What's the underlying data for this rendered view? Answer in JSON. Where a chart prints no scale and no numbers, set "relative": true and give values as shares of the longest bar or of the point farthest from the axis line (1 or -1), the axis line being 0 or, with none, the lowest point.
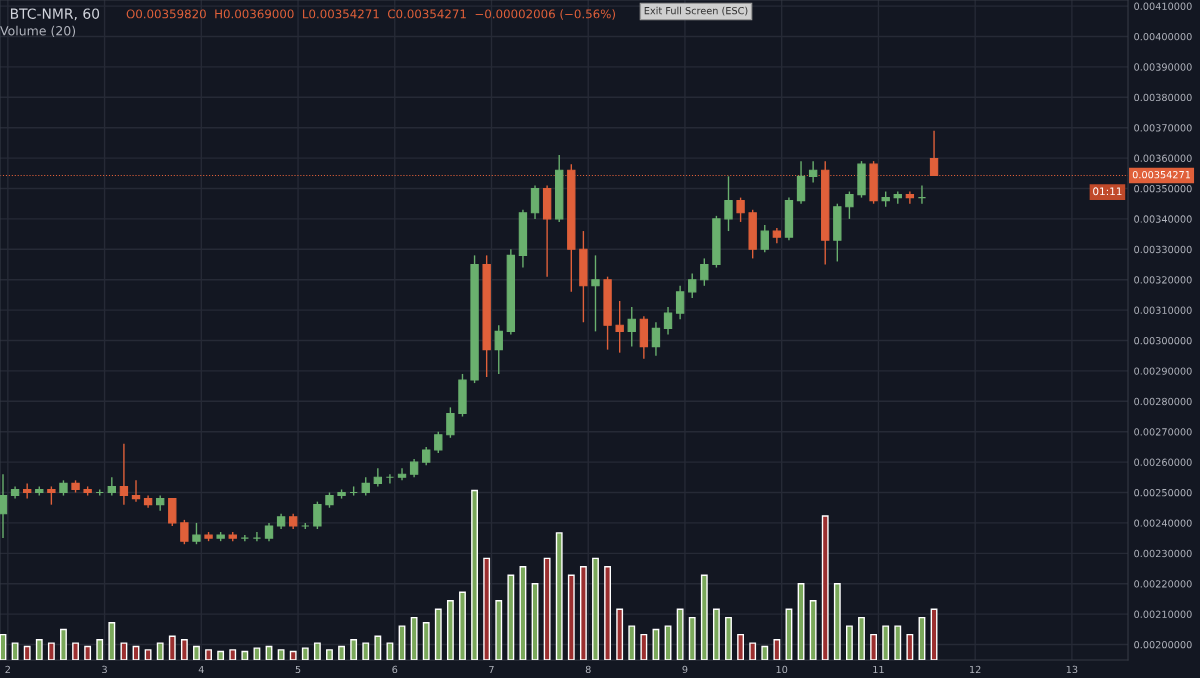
{
  "chart_data": [
    {
      "type": "candlestick",
      "title": "BTC-NMR, 60",
      "subtitle": "O0.00359820  H0.00369000  L0.00354271  C0.00354271  −0.00002006 (−0.56%)",
      "x": [
        1.95,
        2.075,
        2.2,
        2.325,
        2.45,
        2.575,
        2.7,
        2.825,
        2.95,
        3.075,
        3.2,
        3.325,
        3.45,
        3.575,
        3.7,
        3.825,
        3.95,
        4.075,
        4.2,
        4.325,
        4.45,
        4.575,
        4.7,
        4.825,
        4.95,
        5.075,
        5.2,
        5.325,
        5.45,
        5.575,
        5.7,
        5.825,
        5.95,
        6.075,
        6.2,
        6.325,
        6.45,
        6.575,
        6.7,
        6.825,
        6.95,
        7.075,
        7.2,
        7.325,
        7.45,
        7.575,
        7.7,
        7.825,
        7.95,
        8.075,
        8.2,
        8.325,
        8.45,
        8.575,
        8.7,
        8.825,
        8.95,
        9.075,
        9.2,
        9.325,
        9.45,
        9.575,
        9.7,
        9.825,
        9.95,
        10.075,
        10.2,
        10.325,
        10.45,
        10.575,
        10.7,
        10.825,
        10.95,
        11.075,
        11.2,
        11.325,
        11.45,
        11.575
      ],
      "ohlc": [
        [
          0.00243,
          0.00256,
          0.00235,
          0.00249
        ],
        [
          0.00249,
          0.00252,
          0.00248,
          0.00251
        ],
        [
          0.00251,
          0.00253,
          0.00248,
          0.0025
        ],
        [
          0.0025,
          0.00252,
          0.00249,
          0.00251
        ],
        [
          0.00251,
          0.00252,
          0.00246,
          0.0025
        ],
        [
          0.0025,
          0.00254,
          0.00249,
          0.00253
        ],
        [
          0.00253,
          0.00254,
          0.0025,
          0.00251
        ],
        [
          0.00251,
          0.00252,
          0.00249,
          0.0025
        ],
        [
          0.0025,
          0.00251,
          0.00249,
          0.0025
        ],
        [
          0.0025,
          0.00255,
          0.00249,
          0.00252
        ],
        [
          0.00252,
          0.00266,
          0.00246,
          0.00249
        ],
        [
          0.00249,
          0.00254,
          0.00247,
          0.00248
        ],
        [
          0.00248,
          0.00249,
          0.00245,
          0.00246
        ],
        [
          0.00246,
          0.00249,
          0.00244,
          0.00248
        ],
        [
          0.00248,
          0.00248,
          0.00239,
          0.0024
        ],
        [
          0.0024,
          0.00241,
          0.00233,
          0.00234
        ],
        [
          0.00234,
          0.0024,
          0.00233,
          0.00236
        ],
        [
          0.00236,
          0.00237,
          0.00234,
          0.00235
        ],
        [
          0.00235,
          0.00237,
          0.00234,
          0.00236
        ],
        [
          0.00236,
          0.00237,
          0.00234,
          0.00235
        ],
        [
          0.00235,
          0.00236,
          0.00234,
          0.00235
        ],
        [
          0.00235,
          0.00237,
          0.00234,
          0.00235
        ],
        [
          0.00235,
          0.0024,
          0.00234,
          0.00239
        ],
        [
          0.00239,
          0.00243,
          0.00238,
          0.00242
        ],
        [
          0.00242,
          0.00243,
          0.00238,
          0.00239
        ],
        [
          0.00239,
          0.0024,
          0.00238,
          0.00239
        ],
        [
          0.00239,
          0.00247,
          0.00238,
          0.00246
        ],
        [
          0.00246,
          0.0025,
          0.00245,
          0.00249
        ],
        [
          0.00249,
          0.00251,
          0.00248,
          0.0025
        ],
        [
          0.0025,
          0.00252,
          0.00249,
          0.0025
        ],
        [
          0.0025,
          0.00255,
          0.00249,
          0.00253
        ],
        [
          0.00253,
          0.00258,
          0.00252,
          0.00255
        ],
        [
          0.00255,
          0.00256,
          0.00253,
          0.00255
        ],
        [
          0.00255,
          0.00258,
          0.00254,
          0.00256
        ],
        [
          0.00256,
          0.00261,
          0.00255,
          0.0026
        ],
        [
          0.0026,
          0.00265,
          0.00259,
          0.00264
        ],
        [
          0.00264,
          0.0027,
          0.00263,
          0.00269
        ],
        [
          0.00269,
          0.00278,
          0.00268,
          0.00276
        ],
        [
          0.00276,
          0.00289,
          0.00275,
          0.00287
        ],
        [
          0.00287,
          0.00328,
          0.00286,
          0.00325
        ],
        [
          0.00325,
          0.00328,
          0.00288,
          0.00297
        ],
        [
          0.00297,
          0.00305,
          0.00289,
          0.00303
        ],
        [
          0.00303,
          0.0033,
          0.00302,
          0.00328
        ],
        [
          0.00328,
          0.00343,
          0.00324,
          0.00342
        ],
        [
          0.00342,
          0.00351,
          0.0034,
          0.0035
        ],
        [
          0.0035,
          0.00351,
          0.00321,
          0.0034
        ],
        [
          0.0034,
          0.00361,
          0.00339,
          0.00356
        ],
        [
          0.00356,
          0.00358,
          0.00316,
          0.0033
        ],
        [
          0.0033,
          0.00336,
          0.00306,
          0.00318
        ],
        [
          0.00318,
          0.00328,
          0.00303,
          0.0032
        ],
        [
          0.0032,
          0.00321,
          0.00297,
          0.00305
        ],
        [
          0.00305,
          0.00313,
          0.00296,
          0.00303
        ],
        [
          0.00303,
          0.00311,
          0.00298,
          0.00307
        ],
        [
          0.00307,
          0.00308,
          0.00294,
          0.00298
        ],
        [
          0.00298,
          0.00306,
          0.00295,
          0.00304
        ],
        [
          0.00304,
          0.00311,
          0.00302,
          0.00309
        ],
        [
          0.00309,
          0.00318,
          0.00307,
          0.00316
        ],
        [
          0.00316,
          0.00322,
          0.00314,
          0.0032
        ],
        [
          0.0032,
          0.00327,
          0.00318,
          0.00325
        ],
        [
          0.00325,
          0.00341,
          0.00324,
          0.0034
        ],
        [
          0.0034,
          0.00354,
          0.00336,
          0.00346
        ],
        [
          0.00346,
          0.00347,
          0.00339,
          0.00342
        ],
        [
          0.00342,
          0.00343,
          0.00327,
          0.0033
        ],
        [
          0.0033,
          0.00338,
          0.00329,
          0.00336
        ],
        [
          0.00336,
          0.00337,
          0.00332,
          0.00334
        ],
        [
          0.00334,
          0.00347,
          0.00333,
          0.00346
        ],
        [
          0.00346,
          0.00359,
          0.00345,
          0.00354
        ],
        [
          0.00354,
          0.00359,
          0.00352,
          0.00356
        ],
        [
          0.00356,
          0.00359,
          0.00325,
          0.00333
        ],
        [
          0.00333,
          0.00345,
          0.00326,
          0.00344
        ],
        [
          0.00344,
          0.00349,
          0.0034,
          0.00348
        ],
        [
          0.00348,
          0.00359,
          0.00347,
          0.00358
        ],
        [
          0.00358,
          0.00359,
          0.00345,
          0.00346
        ],
        [
          0.00346,
          0.00349,
          0.00344,
          0.00347
        ],
        [
          0.00347,
          0.00349,
          0.00345,
          0.00348
        ],
        [
          0.00348,
          0.00349,
          0.00345,
          0.00347
        ],
        [
          0.00347,
          0.00351,
          0.00345,
          0.00347
        ],
        [
          0.0035982,
          0.00369,
          0.00354271,
          0.00354271
        ]
      ],
      "colors": [
        "#6ab06e",
        "#6ab06e",
        "#e0603a",
        "#6ab06e",
        "#e0603a",
        "#6ab06e",
        "#e0603a",
        "#e0603a",
        "#6ab06e",
        "#6ab06e",
        "#e0603a",
        "#e0603a",
        "#e0603a",
        "#6ab06e",
        "#e0603a",
        "#e0603a",
        "#6ab06e",
        "#e0603a",
        "#6ab06e",
        "#e0603a",
        "#6ab06e",
        "#6ab06e",
        "#6ab06e",
        "#6ab06e",
        "#e0603a",
        "#6ab06e",
        "#6ab06e",
        "#6ab06e",
        "#6ab06e",
        "#6ab06e",
        "#6ab06e",
        "#6ab06e",
        "#6ab06e",
        "#6ab06e",
        "#6ab06e",
        "#6ab06e",
        "#6ab06e",
        "#6ab06e",
        "#6ab06e",
        "#6ab06e",
        "#e0603a",
        "#6ab06e",
        "#6ab06e",
        "#6ab06e",
        "#6ab06e",
        "#e0603a",
        "#6ab06e",
        "#e0603a",
        "#e0603a",
        "#6ab06e",
        "#e0603a",
        "#e0603a",
        "#6ab06e",
        "#e0603a",
        "#6ab06e",
        "#6ab06e",
        "#6ab06e",
        "#6ab06e",
        "#6ab06e",
        "#6ab06e",
        "#6ab06e",
        "#e0603a",
        "#e0603a",
        "#6ab06e",
        "#e0603a",
        "#6ab06e",
        "#6ab06e",
        "#6ab06e",
        "#e0603a",
        "#6ab06e",
        "#6ab06e",
        "#6ab06e",
        "#e0603a",
        "#6ab06e",
        "#6ab06e",
        "#e0603a",
        "#6ab06e",
        "#e0603a"
      ],
      "xlim": [
        1.919,
        13.58
      ],
      "xticks": [
        2,
        3,
        4,
        5,
        6,
        7,
        8,
        9,
        10,
        11,
        12,
        13
      ],
      "ylim": [
        0.001949,
        0.00412
      ],
      "yticks": [
        {
          "value": 0.002,
          "label": "0.00200000"
        },
        {
          "value": 0.0021,
          "label": "0.00210000"
        },
        {
          "value": 0.0022,
          "label": "0.00220000"
        },
        {
          "value": 0.0023,
          "label": "0.00230000"
        },
        {
          "value": 0.0024,
          "label": "0.00240000"
        },
        {
          "value": 0.0025,
          "label": "0.00250000"
        },
        {
          "value": 0.0026,
          "label": "0.00260000"
        },
        {
          "value": 0.0027,
          "label": "0.00270000"
        },
        {
          "value": 0.0028,
          "label": "0.00280000"
        },
        {
          "value": 0.0029,
          "label": "0.00290000"
        },
        {
          "value": 0.003,
          "label": "0.00300000"
        },
        {
          "value": 0.0031,
          "label": "0.00310000"
        },
        {
          "value": 0.0032,
          "label": "0.00320000"
        },
        {
          "value": 0.0033,
          "label": "0.00330000"
        },
        {
          "value": 0.0034,
          "label": "0.00340000"
        },
        {
          "value": 0.0035,
          "label": "0.00350000"
        },
        {
          "value": 0.0036,
          "label": "0.00360000"
        },
        {
          "value": 0.0037,
          "label": "0.00370000"
        },
        {
          "value": 0.0038,
          "label": "0.00380000"
        },
        {
          "value": 0.0039,
          "label": "0.00390000"
        },
        {
          "value": 0.004,
          "label": "0.00400000"
        },
        {
          "value": 0.0041,
          "label": "0.00410000"
        }
      ],
      "grid": true,
      "ref_lines": [
        {
          "axis": "y",
          "value": 0.00354271,
          "label": "0.00354271",
          "color": "#e0603a",
          "line_style": "dotted"
        }
      ],
      "annotations": [
        "Exit Full Screen (ESC)",
        "01:11"
      ]
    },
    {
      "type": "bar",
      "title": "Volume (20)",
      "relative": true,
      "tick_labels": false,
      "x": [
        1.95,
        2.075,
        2.2,
        2.325,
        2.45,
        2.575,
        2.7,
        2.825,
        2.95,
        3.075,
        3.2,
        3.325,
        3.45,
        3.575,
        3.7,
        3.825,
        3.95,
        4.075,
        4.2,
        4.325,
        4.45,
        4.575,
        4.7,
        4.825,
        4.95,
        5.075,
        5.2,
        5.325,
        5.45,
        5.575,
        5.7,
        5.825,
        5.95,
        6.075,
        6.2,
        6.325,
        6.45,
        6.575,
        6.7,
        6.825,
        6.95,
        7.075,
        7.2,
        7.325,
        7.45,
        7.575,
        7.7,
        7.825,
        7.95,
        8.075,
        8.2,
        8.325,
        8.45,
        8.575,
        8.7,
        8.825,
        8.95,
        9.075,
        9.2,
        9.325,
        9.45,
        9.575,
        9.7,
        9.825,
        9.95,
        10.075,
        10.2,
        10.325,
        10.45,
        10.575,
        10.7,
        10.825,
        10.95,
        11.075,
        11.2,
        11.325,
        11.45,
        11.575
      ],
      "values": [
        0.15,
        0.1,
        0.08,
        0.12,
        0.1,
        0.18,
        0.1,
        0.08,
        0.12,
        0.22,
        0.1,
        0.08,
        0.06,
        0.1,
        0.14,
        0.12,
        0.08,
        0.06,
        0.05,
        0.06,
        0.05,
        0.07,
        0.08,
        0.06,
        0.05,
        0.07,
        0.1,
        0.06,
        0.08,
        0.12,
        0.1,
        0.14,
        0.1,
        0.2,
        0.25,
        0.22,
        0.3,
        0.35,
        0.4,
        1.0,
        0.6,
        0.35,
        0.5,
        0.55,
        0.45,
        0.6,
        0.75,
        0.5,
        0.55,
        0.6,
        0.55,
        0.3,
        0.2,
        0.15,
        0.18,
        0.2,
        0.3,
        0.25,
        0.5,
        0.3,
        0.25,
        0.15,
        0.1,
        0.08,
        0.12,
        0.3,
        0.45,
        0.35,
        0.85,
        0.45,
        0.2,
        0.25,
        0.15,
        0.2,
        0.2,
        0.15,
        0.25,
        0.3
      ],
      "colors": [
        "#7aa85a",
        "#7aa85a",
        "#9b2f2f",
        "#7aa85a",
        "#9b2f2f",
        "#7aa85a",
        "#9b2f2f",
        "#9b2f2f",
        "#7aa85a",
        "#7aa85a",
        "#9b2f2f",
        "#9b2f2f",
        "#9b2f2f",
        "#7aa85a",
        "#9b2f2f",
        "#9b2f2f",
        "#7aa85a",
        "#9b2f2f",
        "#7aa85a",
        "#9b2f2f",
        "#7aa85a",
        "#7aa85a",
        "#7aa85a",
        "#7aa85a",
        "#9b2f2f",
        "#7aa85a",
        "#7aa85a",
        "#7aa85a",
        "#7aa85a",
        "#7aa85a",
        "#7aa85a",
        "#7aa85a",
        "#7aa85a",
        "#7aa85a",
        "#7aa85a",
        "#7aa85a",
        "#7aa85a",
        "#7aa85a",
        "#7aa85a",
        "#7aa85a",
        "#9b2f2f",
        "#7aa85a",
        "#7aa85a",
        "#7aa85a",
        "#7aa85a",
        "#9b2f2f",
        "#7aa85a",
        "#9b2f2f",
        "#9b2f2f",
        "#7aa85a",
        "#9b2f2f",
        "#9b2f2f",
        "#7aa85a",
        "#9b2f2f",
        "#7aa85a",
        "#7aa85a",
        "#7aa85a",
        "#7aa85a",
        "#7aa85a",
        "#7aa85a",
        "#7aa85a",
        "#9b2f2f",
        "#9b2f2f",
        "#7aa85a",
        "#9b2f2f",
        "#7aa85a",
        "#7aa85a",
        "#7aa85a",
        "#9b2f2f",
        "#7aa85a",
        "#7aa85a",
        "#7aa85a",
        "#9b2f2f",
        "#7aa85a",
        "#7aa85a",
        "#9b2f2f",
        "#7aa85a",
        "#9b2f2f"
      ],
      "xlim": [
        1.919,
        13.58
      ]
    }
  ]
}
